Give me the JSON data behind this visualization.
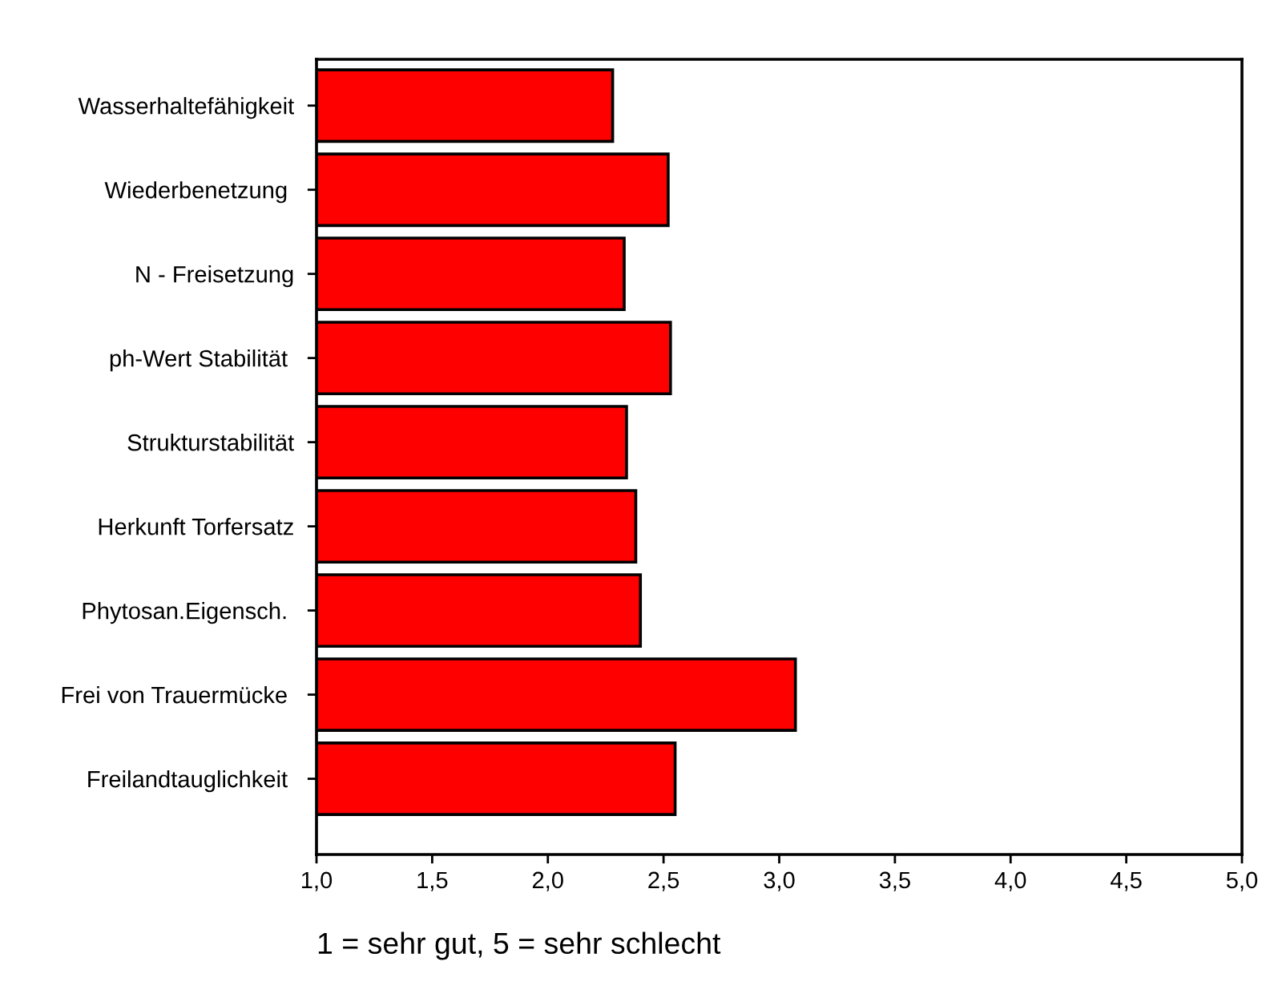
{
  "chart_data": {
    "type": "bar",
    "orientation": "horizontal",
    "categories": [
      "Wasserhaltefähigkeit",
      "Wiederbenetzung ",
      "N - Freisetzung",
      "ph-Wert Stabilität ",
      "Strukturstabilität",
      "Herkunft Torfersatz",
      "Phytosan.Eigensch. ",
      "Frei von Trauermücke ",
      "Freilandtauglichkeit "
    ],
    "values": [
      2.28,
      2.52,
      2.33,
      2.53,
      2.34,
      2.38,
      2.4,
      3.07,
      2.55
    ],
    "color": "#ff0000",
    "xlim": [
      1.0,
      5.0
    ],
    "xticks": [
      {
        "value": 1.0,
        "label": "1,0"
      },
      {
        "value": 1.5,
        "label": "1,5"
      },
      {
        "value": 2.0,
        "label": "2,0"
      },
      {
        "value": 2.5,
        "label": "2,5"
      },
      {
        "value": 3.0,
        "label": "3,0"
      },
      {
        "value": 3.5,
        "label": "3,5"
      },
      {
        "value": 4.0,
        "label": "4,0"
      },
      {
        "value": 4.5,
        "label": "4,5"
      },
      {
        "value": 5.0,
        "label": "5,0"
      }
    ],
    "annotations": [
      "1 = sehr gut, 5 = sehr schlecht"
    ],
    "grid": false,
    "legend": false
  }
}
